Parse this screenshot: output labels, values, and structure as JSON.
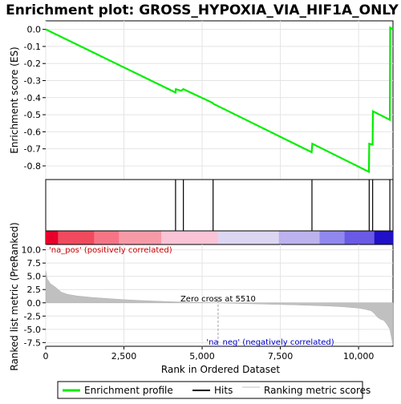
{
  "chart_data": {
    "type": "line",
    "title": "Enrichment plot: GROSS_HYPOXIA_VIA_HIF1A_ONLY",
    "xlabel": "Rank in Ordered Dataset",
    "es_ylabel": "Enrichment score (ES)",
    "metric_ylabel": "Ranked list metric (PreRanked)",
    "xlim": [
      0,
      11100
    ],
    "es_ylim": [
      -0.88,
      0.05
    ],
    "metric_ylim": [
      -8.2,
      11.0
    ],
    "x_ticks": [
      0,
      2500,
      5000,
      7500,
      10000
    ],
    "x_tick_labels": [
      "0",
      "2,500",
      "5,000",
      "7,500",
      "10,000"
    ],
    "es_ticks": [
      0.0,
      -0.1,
      -0.2,
      -0.3,
      -0.4,
      -0.5,
      -0.6,
      -0.7,
      -0.8
    ],
    "es_tick_labels": [
      "0.0",
      "-0.1",
      "-0.2",
      "-0.3",
      "-0.4",
      "-0.5",
      "-0.6",
      "-0.7",
      "-0.8"
    ],
    "metric_ticks": [
      10.0,
      7.5,
      5.0,
      2.5,
      0.0,
      -2.5,
      -5.0,
      -7.5
    ],
    "metric_tick_labels": [
      "10.0",
      "7.5",
      "5.0",
      "2.5",
      "0.0",
      "-2.5",
      "-5.0",
      "-7.5"
    ],
    "series": [
      {
        "name": "Enrichment profile",
        "color": "#00ee00",
        "x": [
          0,
          4150,
          4160,
          4330,
          4400,
          5330,
          5350,
          8500,
          8520,
          10330,
          10340,
          10450,
          10460,
          11000,
          11010,
          11100
        ],
        "y": [
          0.0,
          -0.37,
          -0.35,
          -0.36,
          -0.35,
          -0.43,
          -0.435,
          -0.72,
          -0.67,
          -0.835,
          -0.67,
          -0.675,
          -0.48,
          -0.53,
          0.01,
          0.0
        ]
      }
    ],
    "hits": [
      4150,
      4400,
      5350,
      8510,
      10340,
      10450,
      11000
    ],
    "metric_profile": {
      "x": [
        0,
        50,
        150,
        300,
        500,
        700,
        1000,
        1500,
        2000,
        2500,
        3000,
        3500,
        4000,
        4500,
        5000,
        5510,
        6000,
        7000,
        8000,
        9000,
        9500,
        10000,
        10200,
        10400,
        10500,
        10600,
        10700,
        10800,
        10900,
        11000,
        11050,
        11100
      ],
      "y": [
        6.0,
        4.5,
        3.6,
        3.0,
        2.0,
        1.6,
        1.3,
        1.0,
        0.8,
        0.6,
        0.45,
        0.32,
        0.2,
        0.12,
        0.05,
        0.0,
        -0.1,
        -0.25,
        -0.4,
        -0.6,
        -0.75,
        -1.0,
        -1.2,
        -1.5,
        -2.0,
        -2.7,
        -3.1,
        -3.3,
        -4.0,
        -5.0,
        -6.5,
        -8.0
      ]
    },
    "zero_cross": {
      "x": 5510,
      "label": "Zero cross at 5510"
    },
    "pos_label": "'na_pos' (positively correlated)",
    "neg_label": "'na_neg' (negatively correlated)",
    "colorbar": [
      {
        "from": 0,
        "to": 400,
        "color": "#e8002a"
      },
      {
        "from": 400,
        "to": 1550,
        "color": "#f04a5e"
      },
      {
        "from": 1550,
        "to": 2350,
        "color": "#f57586"
      },
      {
        "from": 2350,
        "to": 3700,
        "color": "#f79aa8"
      },
      {
        "from": 3700,
        "to": 5510,
        "color": "#fbc3d6"
      },
      {
        "from": 5510,
        "to": 7450,
        "color": "#dcd6f2"
      },
      {
        "from": 7450,
        "to": 8750,
        "color": "#bcb2ee"
      },
      {
        "from": 8750,
        "to": 9550,
        "color": "#9088ee"
      },
      {
        "from": 9550,
        "to": 10500,
        "color": "#6a5ae6"
      },
      {
        "from": 10500,
        "to": 11100,
        "color": "#2010c8"
      }
    ],
    "legend": {
      "placement": "bottom",
      "items": [
        {
          "label": "Enrichment profile",
          "color": "#00ee00"
        },
        {
          "label": "Hits",
          "color": "#000000"
        },
        {
          "label": "Ranking metric scores",
          "color": "#c0c0c0"
        }
      ]
    }
  }
}
